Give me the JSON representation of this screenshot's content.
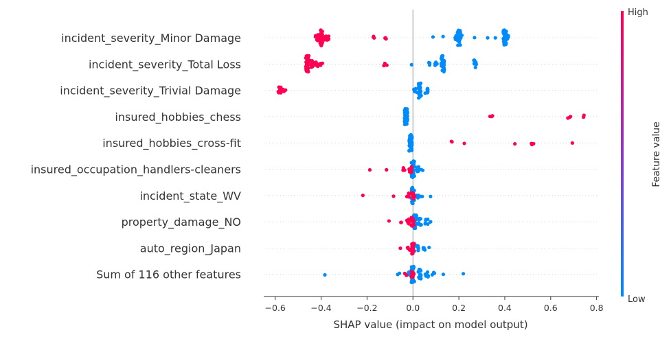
{
  "chart_data": {
    "type": "scatter",
    "subtype": "shap-beeswarm",
    "title": "",
    "xlabel": "SHAP value (impact on model output)",
    "xlim": [
      -0.65,
      0.81
    ],
    "xticks": [
      -0.6,
      -0.4,
      -0.2,
      0.0,
      0.2,
      0.4,
      0.6,
      0.8
    ],
    "xtick_labels": [
      "−0.6",
      "−0.4",
      "−0.2",
      "0.0",
      "0.2",
      "0.4",
      "0.6",
      "0.8"
    ],
    "zero_line": true,
    "grid": false,
    "colorbar": {
      "title": "Feature value",
      "high_label": "High",
      "low_label": "Low",
      "high_color": "#ff0052",
      "mid_color": "#8e36c9",
      "low_color": "#008bfb"
    },
    "features": [
      {
        "name": "incident_severity_Minor Damage",
        "high": [
          [
            -0.4,
            30
          ],
          [
            -0.41,
            10
          ],
          [
            -0.38,
            8
          ],
          [
            -0.42,
            6
          ],
          [
            -0.37,
            4
          ],
          [
            -0.17,
            3
          ],
          [
            -0.12,
            3
          ]
        ],
        "low": [
          [
            0.2,
            30
          ],
          [
            0.4,
            28
          ],
          [
            0.19,
            6
          ],
          [
            0.21,
            6
          ],
          [
            0.41,
            6
          ],
          [
            0.09,
            1
          ],
          [
            0.13,
            1
          ],
          [
            0.27,
            1
          ],
          [
            0.32,
            1
          ],
          [
            0.36,
            1
          ]
        ]
      },
      {
        "name": "incident_severity_Total Loss",
        "high": [
          [
            -0.46,
            30
          ],
          [
            -0.44,
            10
          ],
          [
            -0.42,
            6
          ],
          [
            -0.4,
            4
          ],
          [
            -0.12,
            3
          ]
        ],
        "low": [
          [
            0.13,
            34
          ],
          [
            0.27,
            14
          ],
          [
            0.1,
            5
          ],
          [
            0.07,
            3
          ],
          [
            0.0,
            1
          ]
        ]
      },
      {
        "name": "incident_severity_Trivial Damage",
        "high": [
          [
            -0.58,
            12
          ],
          [
            -0.56,
            4
          ]
        ],
        "low": [
          [
            0.03,
            28
          ],
          [
            0.06,
            8
          ],
          [
            0.01,
            4
          ]
        ]
      },
      {
        "name": "insured_hobbies_chess",
        "high": [
          [
            0.34,
            3
          ],
          [
            0.68,
            3
          ],
          [
            0.74,
            2
          ]
        ],
        "low": [
          [
            -0.03,
            60
          ]
        ]
      },
      {
        "name": "insured_hobbies_cross-fit",
        "high": [
          [
            0.17,
            2
          ],
          [
            0.23,
            1
          ],
          [
            0.45,
            1
          ],
          [
            0.52,
            3
          ],
          [
            0.69,
            1
          ]
        ],
        "low": [
          [
            -0.01,
            42
          ]
        ]
      },
      {
        "name": "insured_occupation_handlers-cleaners",
        "high": [
          [
            -0.19,
            1
          ],
          [
            -0.11,
            1
          ],
          [
            -0.04,
            3
          ],
          [
            -0.01,
            10
          ]
        ],
        "low": [
          [
            0.0,
            32
          ],
          [
            0.02,
            6
          ],
          [
            0.04,
            2
          ]
        ]
      },
      {
        "name": "incident_state_WV",
        "high": [
          [
            -0.22,
            1
          ],
          [
            -0.09,
            1
          ],
          [
            -0.02,
            6
          ],
          [
            0.0,
            10
          ]
        ],
        "low": [
          [
            0.0,
            30
          ],
          [
            0.02,
            6
          ],
          [
            0.04,
            3
          ],
          [
            0.08,
            1
          ]
        ]
      },
      {
        "name": "property_damage_NO",
        "high": [
          [
            -0.11,
            1
          ],
          [
            -0.05,
            2
          ],
          [
            -0.02,
            8
          ],
          [
            0.0,
            14
          ]
        ],
        "low": [
          [
            0.01,
            24
          ],
          [
            0.03,
            10
          ],
          [
            0.06,
            6
          ],
          [
            0.08,
            2
          ]
        ]
      },
      {
        "name": "auto_region_Japan",
        "high": [
          [
            -0.05,
            1
          ],
          [
            -0.02,
            4
          ],
          [
            0.0,
            20
          ]
        ],
        "low": [
          [
            0.0,
            16
          ],
          [
            0.02,
            8
          ],
          [
            0.05,
            4
          ],
          [
            0.07,
            1
          ]
        ]
      },
      {
        "name": "Sum of 116 other features",
        "high": [
          [
            -0.03,
            2
          ],
          [
            0.0,
            10
          ]
        ],
        "low": [
          [
            -0.39,
            1
          ],
          [
            -0.06,
            2
          ],
          [
            -0.02,
            6
          ],
          [
            0.0,
            30
          ],
          [
            0.03,
            18
          ],
          [
            0.06,
            8
          ],
          [
            0.09,
            4
          ],
          [
            0.13,
            1
          ],
          [
            0.22,
            1
          ]
        ]
      }
    ]
  }
}
